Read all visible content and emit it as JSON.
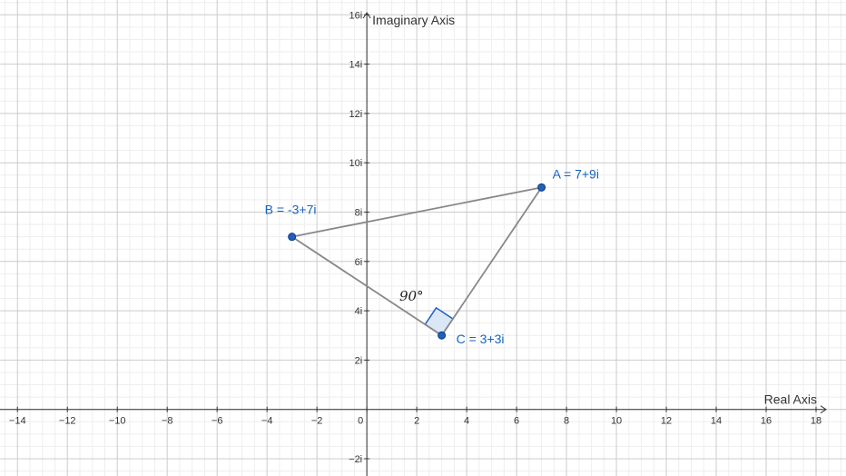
{
  "plane": {
    "x_axis_title": "Real Axis",
    "y_axis_title": "Imaginary Axis",
    "x_range": [
      -14.7,
      19.2
    ],
    "y_range": [
      -2.7,
      16.6
    ],
    "x_ticks": [
      {
        "value": -14,
        "label": "−14"
      },
      {
        "value": -12,
        "label": "−12"
      },
      {
        "value": -10,
        "label": "−10"
      },
      {
        "value": -8,
        "label": "−8"
      },
      {
        "value": -6,
        "label": "−6"
      },
      {
        "value": -4,
        "label": "−4"
      },
      {
        "value": -2,
        "label": "−2"
      },
      {
        "value": 0,
        "label": "0"
      },
      {
        "value": 2,
        "label": "2"
      },
      {
        "value": 4,
        "label": "4"
      },
      {
        "value": 6,
        "label": "6"
      },
      {
        "value": 8,
        "label": "8"
      },
      {
        "value": 10,
        "label": "10"
      },
      {
        "value": 12,
        "label": "12"
      },
      {
        "value": 14,
        "label": "14"
      },
      {
        "value": 16,
        "label": "16"
      },
      {
        "value": 18,
        "label": "18"
      }
    ],
    "y_ticks": [
      {
        "value": -2,
        "label": "−2i"
      },
      {
        "value": 2,
        "label": "2i"
      },
      {
        "value": 4,
        "label": "4i"
      },
      {
        "value": 6,
        "label": "6i"
      },
      {
        "value": 8,
        "label": "8i"
      },
      {
        "value": 10,
        "label": "10i"
      },
      {
        "value": 12,
        "label": "12i"
      },
      {
        "value": 14,
        "label": "14i"
      },
      {
        "value": 16,
        "label": "16i"
      }
    ],
    "grid": true,
    "colors": {
      "major_grid": "#cccccc",
      "minor_grid": "#eeeeee",
      "axis": "#333333",
      "segment": "#888888",
      "point_fill": "#1f5fbf",
      "point_stroke": "#0d3a80",
      "label": "#1565c0",
      "angle_fill": "#dbe7f7",
      "angle_stroke": "#1f5fbf"
    }
  },
  "points": [
    {
      "id": "A",
      "re": 7,
      "im": 9,
      "label": "A = 7+9i",
      "label_pos": "above-right"
    },
    {
      "id": "B",
      "re": -3,
      "im": 7,
      "label": "B = -3+7i",
      "label_pos": "above-left"
    },
    {
      "id": "C",
      "re": 3,
      "im": 3,
      "label": "C = 3+3i",
      "label_pos": "right"
    }
  ],
  "segments": [
    [
      "A",
      "B"
    ],
    [
      "B",
      "C"
    ],
    [
      "C",
      "A"
    ]
  ],
  "right_angle": {
    "vertex": "C",
    "label": "90°"
  }
}
